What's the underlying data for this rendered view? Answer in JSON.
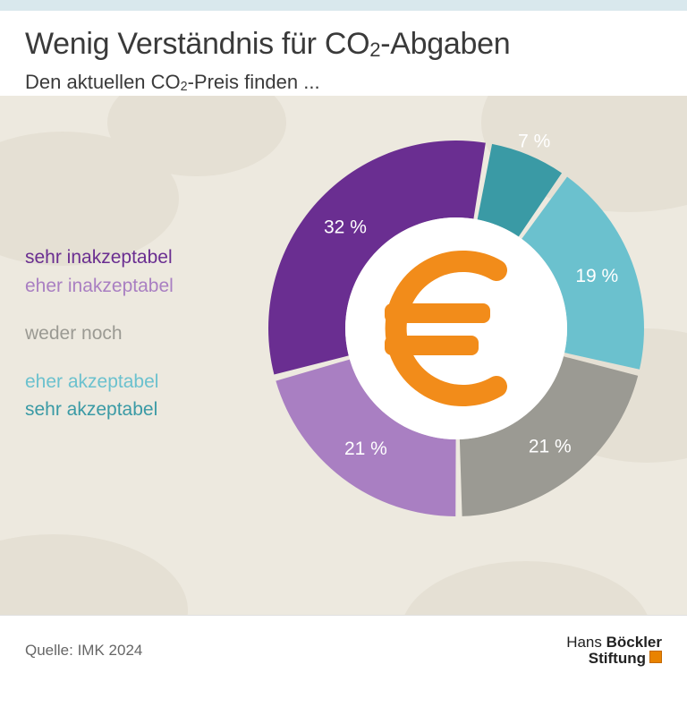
{
  "title_html": "Wenig Verständnis für CO<sub>2</sub>-Abgaben",
  "subtitle_html": "Den aktuellen CO<sub>2</sub>-Preis finden ...",
  "background": {
    "page": "#ffffff",
    "top_band": "#d9e8ed",
    "panel": "#ede9df",
    "cloud": "#e5e0d4"
  },
  "legend": [
    {
      "label": "sehr inakzeptabel",
      "color": "#6a2e91"
    },
    {
      "label": "eher inakzeptabel",
      "color": "#a97fc2"
    },
    {
      "label": "weder noch",
      "color": "#9b9a93"
    },
    {
      "label": "eher akzeptabel",
      "color": "#6bc1ce"
    },
    {
      "label": "sehr akzeptabel",
      "color": "#3a9aa5"
    }
  ],
  "chart": {
    "type": "donut",
    "center_icon": "euro",
    "center_icon_color": "#f28c1a",
    "center_fill": "#ffffff",
    "gap_deg": 2.0,
    "outer_r": 210,
    "inner_r": 124,
    "start_deg": -80,
    "slices": [
      {
        "key": "sehr_akzeptabel",
        "value": 7,
        "color": "#3a9aa5",
        "label": "7 %",
        "label_dark": false,
        "label_r": 1.08,
        "label_side": "out"
      },
      {
        "key": "eher_akzeptabel",
        "value": 19,
        "color": "#6bc1ce",
        "label": "19 %",
        "label_dark": false,
        "label_r": 0.8,
        "label_side": "in"
      },
      {
        "key": "weder_noch",
        "value": 21,
        "color": "#9b9a93",
        "label": "21 %",
        "label_dark": false,
        "label_r": 0.8,
        "label_side": "in"
      },
      {
        "key": "eher_inakzeptabel",
        "value": 21,
        "color": "#a97fc2",
        "label": "21 %",
        "label_dark": false,
        "label_r": 0.8,
        "label_side": "in"
      },
      {
        "key": "sehr_inakzeptabel",
        "value": 32,
        "color": "#6a2e91",
        "label": "32 %",
        "label_dark": false,
        "label_r": 0.8,
        "label_side": "in"
      }
    ]
  },
  "footer": {
    "source": "Quelle: IMK 2024",
    "brand_line1_a": "Hans",
    "brand_line1_b": "Böckler",
    "brand_line2": "Stiftung",
    "swatch": "#e98300"
  }
}
